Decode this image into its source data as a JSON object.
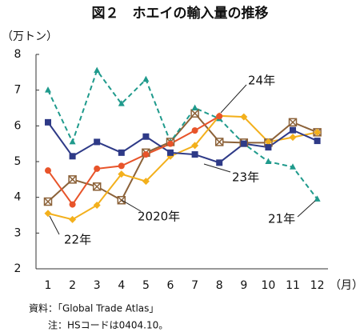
{
  "chart_data": {
    "type": "line",
    "title": "図２　ホエイの輸入量の推移",
    "y_label": "（万トン）",
    "x_label": "（月）",
    "categories": [
      "1",
      "2",
      "3",
      "4",
      "5",
      "6",
      "7",
      "8",
      "9",
      "10",
      "11",
      "12"
    ],
    "ylim": [
      2,
      8
    ],
    "yticks": [
      2,
      3,
      4,
      5,
      6,
      7,
      8
    ],
    "grid": false,
    "series": [
      {
        "name": "2020年",
        "color": "#8c6239",
        "marker": "xsquare",
        "dashed": false,
        "values": [
          3.88,
          4.5,
          4.3,
          3.92,
          5.25,
          5.55,
          6.35,
          5.55,
          5.53,
          5.53,
          6.1,
          5.82
        ]
      },
      {
        "name": "21年",
        "color": "#1f9a8c",
        "marker": "triangle",
        "dashed": true,
        "values": [
          7.0,
          5.55,
          7.55,
          6.62,
          7.3,
          5.55,
          6.5,
          6.2,
          5.5,
          5.0,
          4.85,
          3.95
        ]
      },
      {
        "name": "22年",
        "color": "#f3b01c",
        "marker": "diamond",
        "dashed": false,
        "values": [
          3.55,
          3.38,
          3.78,
          4.65,
          4.45,
          5.15,
          5.45,
          6.28,
          6.25,
          5.55,
          5.68,
          5.82
        ]
      },
      {
        "name": "23年",
        "color": "#2e3a87",
        "marker": "square",
        "dashed": false,
        "values": [
          6.1,
          5.15,
          5.55,
          5.25,
          5.7,
          5.25,
          5.2,
          4.97,
          5.5,
          5.4,
          5.88,
          5.58
        ]
      },
      {
        "name": "24年",
        "color": "#e8542a",
        "marker": "circle",
        "dashed": false,
        "values": [
          4.75,
          3.8,
          4.8,
          4.88,
          5.2,
          5.5,
          5.87,
          6.27,
          null,
          null,
          null,
          null
        ]
      }
    ],
    "notes": [
      "資料：「Global Trade Atlas」",
      "注：HSコードは0404.10。"
    ]
  }
}
